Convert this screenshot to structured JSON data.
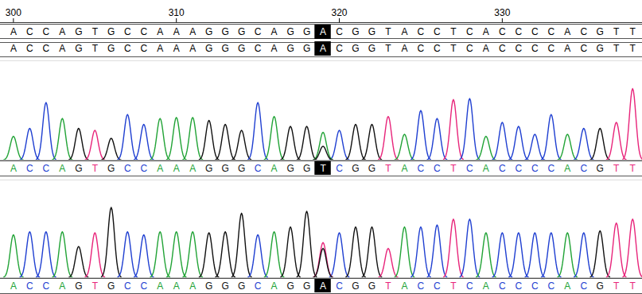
{
  "chart_data": {
    "type": "chromatogram",
    "start": 300,
    "highlight": 319,
    "xlim": [
      299.2,
      338.6
    ],
    "xticks": [
      300,
      310,
      320,
      330
    ],
    "ylim": [
      0,
      100
    ],
    "tick_labels": "x",
    "bases": [
      {
        "name": "A",
        "color": "#21a336"
      },
      {
        "name": "C",
        "color": "#1f3fd1"
      },
      {
        "name": "G",
        "color": "#111111"
      },
      {
        "name": "T",
        "color": "#e8247a"
      }
    ],
    "reference": [
      "ACCAGTGCCAAAGGGCAGGACGGTACCTCACCCCACGTT",
      "ACCAGTGCCAAAGGGCAGGACGGTACCTCACCCCACGTT"
    ],
    "traces": [
      {
        "calls": "ACCAGTGCCAAAGGGCAGGTCGGTACCTCACCCCACGTT",
        "heights": [
          24,
          32,
          58,
          42,
          32,
          30,
          22,
          46,
          36,
          42,
          43,
          43,
          40,
          36,
          30,
          58,
          44,
          34,
          34,
          null,
          30,
          36,
          36,
          44,
          26,
          50,
          42,
          61,
          62,
          24,
          38,
          34,
          26,
          46,
          26,
          32,
          32,
          38,
          72
        ],
        "mixed_peaks": [
          {
            "position": 319,
            "base": "A",
            "height": 28
          },
          {
            "position": 319,
            "base": "G",
            "height": 14
          }
        ]
      },
      {
        "calls": "ACCAGTGCCAAAGGGCAGGACGGTACCTCACCCCACGTT",
        "heights": [
          44,
          47,
          47,
          47,
          32,
          46,
          72,
          47,
          44,
          47,
          47,
          47,
          46,
          47,
          66,
          44,
          47,
          52,
          68,
          null,
          46,
          52,
          52,
          30,
          52,
          52,
          54,
          60,
          60,
          46,
          46,
          46,
          46,
          46,
          46,
          46,
          48,
          56,
          60
        ],
        "mixed_peaks": [
          {
            "position": 319,
            "base": "T",
            "height": 36
          },
          {
            "position": 319,
            "base": "G",
            "height": 30
          }
        ]
      }
    ]
  }
}
